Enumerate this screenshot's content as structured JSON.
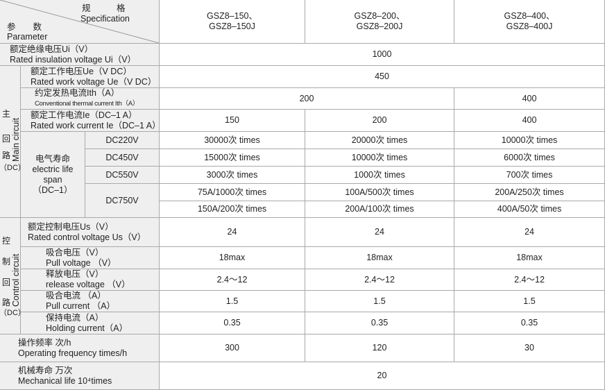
{
  "header": {
    "spec_cn": "规　　　格",
    "spec_en": "Specification",
    "param_cn": "参　　数",
    "param_en": "Parameter",
    "models": [
      {
        "l1": "GSZ8–150、",
        "l2": "GSZ8–150J"
      },
      {
        "l1": "GSZ8–200、",
        "l2": "GSZ8–200J"
      },
      {
        "l1": "GSZ8–400、",
        "l2": "GSZ8–400J"
      }
    ]
  },
  "insulation": {
    "cn": "额定绝缘电压Ui（V）",
    "en": "Rated insulation voltage Ui（V）",
    "value": "1000"
  },
  "main_group": {
    "cn1": "主",
    "cn2": "回",
    "cn3": "路",
    "cn4": "（DC）",
    "en": "Main circuit"
  },
  "ue": {
    "cn": "额定工作电压Ue（V DC）",
    "en": "Rated work voltage Ue（V DC）",
    "value": "450"
  },
  "ith": {
    "cn": "约定发热电流Ith（A）",
    "en": "Conventional thermal current Ith（A）",
    "v1": "200",
    "v2": "400"
  },
  "ie": {
    "cn": "额定工作电流Ie（DC–1 A）",
    "en": "Rated work current Ie（DC–1 A）",
    "values": [
      "150",
      "200",
      "400"
    ]
  },
  "life": {
    "cn": "电气寿命",
    "en1": "electric life",
    "en2": "span",
    "en3": "（DC–1）",
    "rows": [
      {
        "dc": "DC220V",
        "values": [
          "30000次 times",
          "20000次 times",
          "10000次 times"
        ]
      },
      {
        "dc": "DC450V",
        "values": [
          "15000次 times",
          "10000次 times",
          "6000次 times"
        ]
      },
      {
        "dc": "DC550V",
        "values": [
          "3000次 times",
          "1000次 times",
          "700次 times"
        ]
      },
      {
        "dc": "DC750V",
        "values": [
          "75A/1000次 times",
          "100A/500次 times",
          "200A/250次 times"
        ],
        "values2": [
          "150A/200次 times",
          "200A/100次 times",
          "400A/50次 times"
        ]
      }
    ]
  },
  "control_group": {
    "cn1": "控",
    "cn2": "制",
    "cn3": "回",
    "cn4": "路",
    "cn5": "（DC）",
    "en": "Control circuit"
  },
  "control": [
    {
      "cn": "额定控制电压Us（V）",
      "en": "Rated control voltage Us（V）",
      "values": [
        "24",
        "24",
        "24"
      ]
    },
    {
      "cn": "吸合电压（V）",
      "en": "Pull voltage （V）",
      "values": [
        "18max",
        "18max",
        "18max"
      ]
    },
    {
      "cn": "释放电压（V）",
      "en": "release voltage （V）",
      "values": [
        "2.4～12",
        "2.4～12",
        "2.4～12"
      ]
    },
    {
      "cn": "吸合电流 （A）",
      "en": "Pull current  （A）",
      "values": [
        "1.5",
        "1.5",
        "1.5"
      ]
    },
    {
      "cn": "保持电流（A）",
      "en": "Holding current（A）",
      "values": [
        "0.35",
        "0.35",
        "0.35"
      ]
    }
  ],
  "frequency": {
    "cn": "操作频率 次/h",
    "en": "Operating frequency times/h",
    "values": [
      "300",
      "120",
      "30"
    ]
  },
  "mechanical": {
    "cn": "机械寿命 万次",
    "en": "Mechanical life 10⁴times",
    "value": "20"
  }
}
